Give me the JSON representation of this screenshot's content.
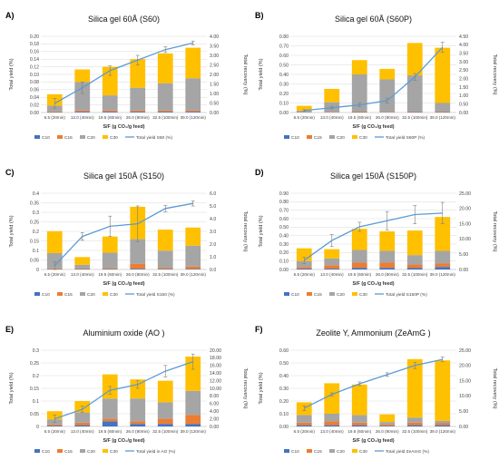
{
  "colors": {
    "C10": "#4472c4",
    "C15": "#ed7d31",
    "C20": "#a5a5a5",
    "C30": "#ffc000",
    "total_line": "#5b9bd5",
    "gridline": "#d9d9d9",
    "error_bar": "#7f7f7f"
  },
  "chart_data": [
    {
      "type": "bar",
      "letter": "A)",
      "title": "Silica gel 60Å (S60)",
      "xlabel": "S/F (g CO₂/g feed)",
      "ylabel": "Total yield (%)",
      "y2label": "Total recovery (%)",
      "categories": [
        "6.5 (20min)",
        "13.0 (40min)",
        "19.5 (60min)",
        "26.0 (80min)",
        "32.5 (100min)",
        "39.0 (120min)"
      ],
      "ylim": [
        0,
        0.2
      ],
      "yticks": [
        "0.00",
        "0.02",
        "0.04",
        "0.06",
        "0.08",
        "0.10",
        "0.12",
        "0.14",
        "0.16",
        "0.18",
        "0.20"
      ],
      "y2lim": [
        0,
        4.0
      ],
      "y2ticks": [
        "0.00",
        "0.50",
        "1.00",
        "1.50",
        "2.00",
        "2.50",
        "3.00",
        "3.50",
        "4.00"
      ],
      "series": [
        {
          "name": "C10",
          "values": [
            0.001,
            0.002,
            0.002,
            0.002,
            0.002,
            0.002
          ]
        },
        {
          "name": "C15",
          "values": [
            0.002,
            0.003,
            0.003,
            0.003,
            0.003,
            0.003
          ]
        },
        {
          "name": "C20",
          "values": [
            0.015,
            0.075,
            0.04,
            0.06,
            0.072,
            0.085
          ]
        },
        {
          "name": "C30",
          "values": [
            0.03,
            0.033,
            0.075,
            0.075,
            0.078,
            0.08
          ]
        }
      ],
      "line": {
        "name": "Total  yield S60 (%)",
        "values": [
          0.48,
          1.3,
          2.2,
          2.75,
          3.3,
          3.65
        ],
        "errors": [
          0.25,
          0.3,
          0.25,
          0.25,
          0.15,
          0.1
        ]
      },
      "legend": [
        "C10",
        "C15",
        "C20",
        "C30",
        "Total  yield S60 (%)"
      ]
    },
    {
      "type": "bar",
      "letter": "B)",
      "title": "Silica gel 60Å (S60P)",
      "xlabel": "S/F (g CO₂/g feed)",
      "ylabel": "Total  yield (%)",
      "y2label": "Total recovery (%)",
      "categories": [
        "6.5 (20min)",
        "13.0 (40min)",
        "19.5 (60min)",
        "26.0 (80min)",
        "32.5 (100min)",
        "39.0 (120min)"
      ],
      "ylim": [
        0,
        0.8
      ],
      "yticks": [
        "0.00",
        "0.10",
        "0.20",
        "0.30",
        "0.40",
        "0.50",
        "0.60",
        "0.70",
        "0.80"
      ],
      "y2lim": [
        0,
        4.5
      ],
      "y2ticks": [
        "0.00",
        "0.50",
        "1.00",
        "1.50",
        "2.00",
        "2.50",
        "3.00",
        "3.50",
        "4.00",
        "4.50"
      ],
      "series": [
        {
          "name": "C10",
          "values": [
            0.002,
            0.003,
            0.004,
            0.003,
            0.004,
            0.004
          ]
        },
        {
          "name": "C15",
          "values": [
            0.003,
            0.005,
            0.006,
            0.005,
            0.006,
            0.006
          ]
        },
        {
          "name": "C20",
          "values": [
            0.015,
            0.1,
            0.39,
            0.34,
            0.38,
            0.09
          ]
        },
        {
          "name": "C30",
          "values": [
            0.05,
            0.14,
            0.15,
            0.11,
            0.34,
            0.58
          ]
        }
      ],
      "line": {
        "name": "Total  yield S60P (%)",
        "values": [
          0.12,
          0.28,
          0.45,
          0.7,
          2.1,
          3.85
        ],
        "errors": [
          0.05,
          0.06,
          0.1,
          0.15,
          0.2,
          0.3
        ]
      },
      "legend": [
        "C10",
        "C15",
        "C20",
        "C30",
        "Total  yield S60P (%)"
      ]
    },
    {
      "type": "bar",
      "letter": "C)",
      "title": "Silica gel 150Å (S150)",
      "xlabel": "S/F (g CO₂/g feed)",
      "ylabel": "Total yield (%)",
      "y2label": "Total recovery (%)",
      "categories": [
        "6.5 (20min)",
        "13.0 (40min)",
        "19.5 (60min)",
        "26.0 (80min)",
        "32.5 (100min)",
        "39.0 (120min)"
      ],
      "ylim": [
        0,
        0.4
      ],
      "yticks": [
        "0",
        "0.05",
        "0.1",
        "0.15",
        "0.2",
        "0.25",
        "0.3",
        "0.35",
        "0.4"
      ],
      "y2lim": [
        0,
        6.0
      ],
      "y2ticks": [
        "0.0",
        "1.0",
        "2.0",
        "3.0",
        "4.0",
        "5.0",
        "6.0"
      ],
      "series": [
        {
          "name": "C10",
          "values": [
            0.002,
            0.002,
            0.003,
            0.004,
            0.003,
            0.003
          ]
        },
        {
          "name": "C15",
          "values": [
            0.004,
            0.003,
            0.005,
            0.025,
            0.006,
            0.012
          ]
        },
        {
          "name": "C20",
          "values": [
            0.08,
            0.02,
            0.08,
            0.13,
            0.09,
            0.11
          ]
        },
        {
          "name": "C30",
          "values": [
            0.115,
            0.04,
            0.085,
            0.17,
            0.11,
            0.095
          ]
        }
      ],
      "line": {
        "name": "Total  yield S150 (%)",
        "values": [
          0.3,
          2.6,
          3.4,
          3.6,
          4.8,
          5.2
        ],
        "errors": [
          0.3,
          0.3,
          0.8,
          1.4,
          0.25,
          0.2
        ]
      },
      "legend": [
        "C10",
        "C15",
        "C20",
        "C30",
        "Total  yield S150 (%)"
      ]
    },
    {
      "type": "bar",
      "letter": "D)",
      "title": "Silica gel 150Å (S150P)",
      "xlabel": "S/F (g CO₂/g feed)",
      "ylabel": "Total yield (%)",
      "y2label": "Total recovery (%)",
      "categories": [
        "6.5 (20min)",
        "13.0 (40min)",
        "19.5 (60min)",
        "26.0 (80min)",
        "32.5 (100min)",
        "39.0 (120min)"
      ],
      "ylim": [
        0,
        0.9
      ],
      "yticks": [
        "0.00",
        "0.10",
        "0.20",
        "0.30",
        "0.40",
        "0.50",
        "0.60",
        "0.70",
        "0.80",
        "0.90"
      ],
      "y2lim": [
        0,
        25.0
      ],
      "y2ticks": [
        "0.00",
        "5.00",
        "10.00",
        "15.00",
        "20.00",
        "25.00"
      ],
      "series": [
        {
          "name": "C10",
          "values": [
            0.01,
            0.01,
            0.02,
            0.02,
            0.02,
            0.03
          ]
        },
        {
          "name": "C15",
          "values": [
            0.02,
            0.04,
            0.06,
            0.06,
            0.04,
            0.04
          ]
        },
        {
          "name": "C20",
          "values": [
            0.07,
            0.08,
            0.15,
            0.14,
            0.11,
            0.15
          ]
        },
        {
          "name": "C30",
          "values": [
            0.15,
            0.11,
            0.25,
            0.23,
            0.29,
            0.4
          ]
        }
      ],
      "line": {
        "name": "Total  yield S150P (%)",
        "values": [
          3.0,
          9.5,
          14.0,
          16.0,
          18.0,
          18.5
        ],
        "errors": [
          1.0,
          2.0,
          1.5,
          3.0,
          3.0,
          3.5
        ]
      },
      "legend": [
        "C10",
        "C15",
        "C20",
        "C30",
        "Total  yield S150P (%)"
      ]
    },
    {
      "type": "bar",
      "letter": "E)",
      "title": "Aluminium oxide (AO )",
      "xlabel": "S/F (g CO₂/g feed)",
      "ylabel": "Total yield (%)",
      "y2label": "Total recovery (%)",
      "categories": [
        "6.5 (20min)",
        "13.0 (40min)",
        "19.5 (60min)",
        "26.0 (80min)",
        "32.5 (100min)",
        "39.0 (120min)"
      ],
      "ylim": [
        0,
        0.3
      ],
      "yticks": [
        "0",
        "0.05",
        "0.1",
        "0.15",
        "0.2",
        "0.25",
        "0.3"
      ],
      "y2lim": [
        0,
        20.0
      ],
      "y2ticks": [
        "0.00",
        "2.00",
        "4.00",
        "6.00",
        "8.00",
        "10.00",
        "12.00",
        "14.00",
        "16.00",
        "18.00",
        "20.00"
      ],
      "series": [
        {
          "name": "C10",
          "values": [
            0.003,
            0.005,
            0.02,
            0.01,
            0.01,
            0.01
          ]
        },
        {
          "name": "C15",
          "values": [
            0.005,
            0.01,
            0.01,
            0.01,
            0.02,
            0.035
          ]
        },
        {
          "name": "C20",
          "values": [
            0.02,
            0.04,
            0.08,
            0.09,
            0.065,
            0.095
          ]
        },
        {
          "name": "C30",
          "values": [
            0.032,
            0.045,
            0.095,
            0.075,
            0.085,
            0.135
          ]
        }
      ],
      "line": {
        "name": "Total  yield in AO (%)",
        "values": [
          2.0,
          4.5,
          9.5,
          11.0,
          14.5,
          17.0
        ],
        "errors": [
          1.0,
          0.8,
          1.0,
          1.0,
          1.5,
          2.0
        ]
      },
      "legend": [
        "C10",
        "C15",
        "C20",
        "C30",
        "Total  yield in AO (%)"
      ]
    },
    {
      "type": "bar",
      "letter": "F)",
      "title": "Zeolite Y,  Ammonium (ZeAmG )",
      "xlabel": "S/F (g CO₂/g feed)",
      "ylabel": "Total yield (%)",
      "y2label": "Total recovery (%)",
      "categories": [
        "6.5 (20min)",
        "13.0 (40min)",
        "19.5 (60min)",
        "26.0 (80min)",
        "32.5 (100min)",
        "39.0 (120min)"
      ],
      "ylim": [
        0,
        0.6
      ],
      "yticks": [
        "0.00",
        "0.10",
        "0.20",
        "0.30",
        "0.40",
        "0.50",
        "0.60"
      ],
      "y2lim": [
        0,
        25.0
      ],
      "y2ticks": [
        "0.00",
        "5.00",
        "10.00",
        "15.00",
        "20.00",
        "25.00"
      ],
      "series": [
        {
          "name": "C10",
          "values": [
            0.01,
            0.01,
            0.01,
            0.005,
            0.01,
            0.01
          ]
        },
        {
          "name": "C15",
          "values": [
            0.02,
            0.03,
            0.02,
            0.01,
            0.02,
            0.015
          ]
        },
        {
          "name": "C20",
          "values": [
            0.06,
            0.06,
            0.06,
            0.02,
            0.04,
            0.02
          ]
        },
        {
          "name": "C30",
          "values": [
            0.1,
            0.24,
            0.24,
            0.06,
            0.46,
            0.475
          ]
        }
      ],
      "line": {
        "name": "Total  yield ZeAmG (%)",
        "values": [
          6.0,
          10.5,
          14.0,
          17.0,
          20.0,
          22.0
        ],
        "errors": [
          0.8,
          0.5,
          0.6,
          0.6,
          1.0,
          0.8
        ]
      },
      "legend": [
        "C10",
        "C15",
        "C20",
        "C30",
        "Total  yield ZeAmG (%)"
      ]
    }
  ]
}
